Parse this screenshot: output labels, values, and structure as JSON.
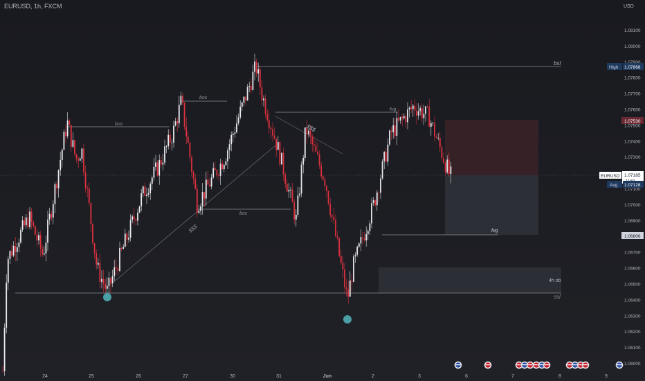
{
  "header": {
    "symbol_title": "EURUSD, 1h, FXCM",
    "currency": "USD"
  },
  "price_axis": {
    "ticks": [
      "1.08100",
      "1.08000",
      "1.07900",
      "1.07800",
      "1.07700",
      "1.07600",
      "1.07500",
      "1.07400",
      "1.07300",
      "1.07200",
      "1.07100",
      "1.07000",
      "1.06900",
      "1.06800",
      "1.06700",
      "1.06600",
      "1.06500",
      "1.06400",
      "1.06300",
      "1.06200",
      "1.06100",
      "1.06000"
    ],
    "badges": {
      "high_label": "High",
      "high_value": "1.07868",
      "target_value": "1.07530",
      "symbol_label": "EURUSD",
      "last_value": "1.07185",
      "countdown": "11:59",
      "avg_label": "Avg",
      "avg_value": "1.07128",
      "stop_value": "1.06806"
    }
  },
  "time_axis": {
    "labels": [
      "24",
      "25",
      "26",
      "27",
      "30",
      "31",
      "Jun",
      "2",
      "3",
      "6",
      "7",
      "8",
      "9"
    ]
  },
  "annotations": {
    "bsl": "bsl",
    "ssl": "ssl",
    "bos_1": "bos",
    "bos_2": "bos",
    "bos_3": "bos",
    "fvg_1": "fvg",
    "fvg_2": "fvg",
    "dollars_1": "$$$",
    "dollars_2": "$$$",
    "ob_4h": "4h ob"
  },
  "colors": {
    "background": "#1b1c21",
    "up_candle": "#e8eaee",
    "down_candle": "#e0313f",
    "marker": "#4a9ea6",
    "zone_red": "#3a2025",
    "zone_grey": "#2f3137",
    "ob_zone": "#2a2c32"
  },
  "chart_data": {
    "type": "candlestick",
    "symbol": "EURUSD",
    "timeframe": "1h",
    "ylim": [
      1.0595,
      1.0818
    ],
    "key_levels": {
      "bsl": 1.07868,
      "ssl": 1.06445,
      "high": 1.07868,
      "take_profit": 1.0753,
      "last": 1.07185,
      "avg": 1.07128,
      "stop": 1.06806,
      "ob_4h_top": 1.066,
      "ob_4h_bottom": 1.0645
    },
    "swing_path": [
      {
        "date": "May 23",
        "price": 1.0595
      },
      {
        "date": "May 23",
        "price": 1.0665
      },
      {
        "date": "May 24",
        "price": 1.0692
      },
      {
        "date": "May 24",
        "price": 1.0668
      },
      {
        "date": "May 24",
        "price": 1.0752
      },
      {
        "date": "May 24",
        "price": 1.0728
      },
      {
        "date": "May 25",
        "price": 1.0735
      },
      {
        "date": "May 25",
        "price": 1.066
      },
      {
        "date": "May 25",
        "price": 1.0645
      },
      {
        "date": "May 26",
        "price": 1.0705
      },
      {
        "date": "May 26",
        "price": 1.0725
      },
      {
        "date": "May 26",
        "price": 1.0745
      },
      {
        "date": "May 27",
        "price": 1.0765
      },
      {
        "date": "May 27",
        "price": 1.07
      },
      {
        "date": "May 27",
        "price": 1.073
      },
      {
        "date": "May 30",
        "price": 1.0787
      },
      {
        "date": "May 30",
        "price": 1.077
      },
      {
        "date": "May 31",
        "price": 1.0745
      },
      {
        "date": "May 31",
        "price": 1.073
      },
      {
        "date": "May 31",
        "price": 1.069
      },
      {
        "date": "May 31",
        "price": 1.0748
      },
      {
        "date": "Jun 1",
        "price": 1.0715
      },
      {
        "date": "Jun 1",
        "price": 1.064
      },
      {
        "date": "Jun 2",
        "price": 1.066
      },
      {
        "date": "Jun 2",
        "price": 1.07
      },
      {
        "date": "Jun 2",
        "price": 1.0745
      },
      {
        "date": "Jun 3",
        "price": 1.0762
      },
      {
        "date": "Jun 3",
        "price": 1.0755
      },
      {
        "date": "Jun 3",
        "price": 1.0718
      }
    ]
  }
}
